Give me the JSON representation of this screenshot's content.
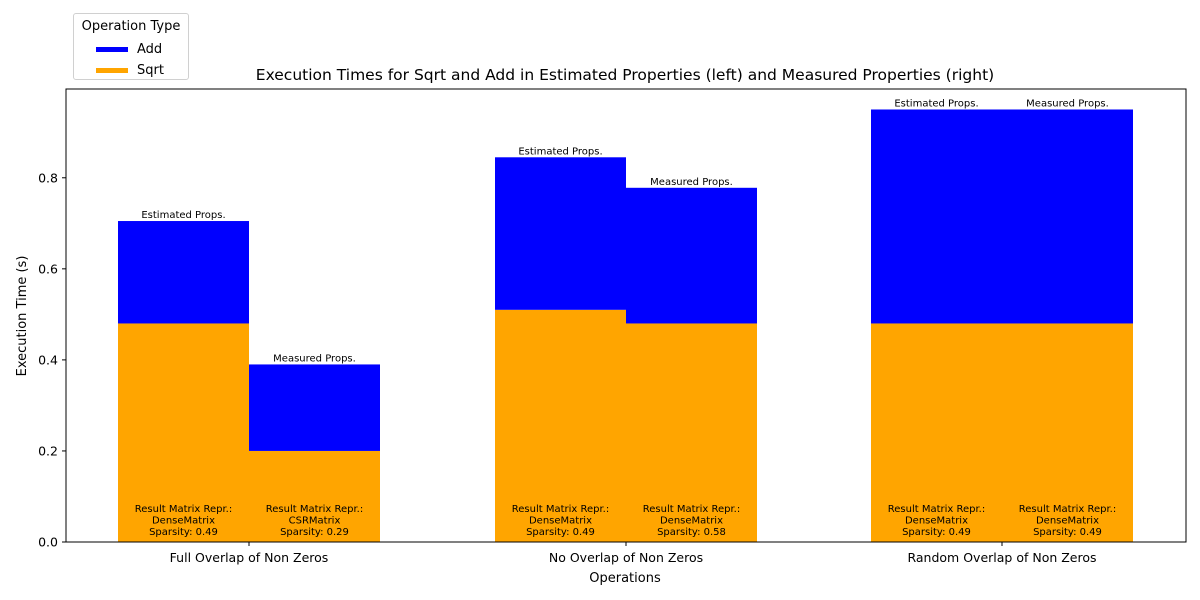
{
  "chart_data": {
    "type": "bar",
    "stacked": true,
    "title": "Execution Times for Sqrt and Add in Estimated Properties (left) and Measured Properties (right)",
    "xlabel": "Operations",
    "ylabel": "Execution Time (s)",
    "ylim": [
      0,
      0.995
    ],
    "yticks": [
      "0.0",
      "0.2",
      "0.4",
      "0.6",
      "0.8"
    ],
    "categories": [
      "Full Overlap of Non Zeros",
      "No Overlap of Non Zeros",
      "Random Overlap of Non Zeros"
    ],
    "legend": {
      "title": "Operation Type",
      "placement": "upper-left-outside"
    },
    "series": [
      {
        "name": "Add",
        "color": "#0000ff"
      },
      {
        "name": "Sqrt",
        "color": "#ffa500"
      }
    ],
    "bars": [
      {
        "category": 0,
        "side": "left",
        "sqrt": 0.48,
        "add": 0.225,
        "top_label": "Estimated Props.",
        "bottom_label": [
          "Result Matrix Repr.:",
          "DenseMatrix",
          "Sparsity: 0.49"
        ]
      },
      {
        "category": 0,
        "side": "right",
        "sqrt": 0.2,
        "add": 0.19,
        "top_label": "Measured Props.",
        "bottom_label": [
          "Result Matrix Repr.:",
          "CSRMatrix",
          "Sparsity: 0.29"
        ]
      },
      {
        "category": 1,
        "side": "left",
        "sqrt": 0.51,
        "add": 0.335,
        "top_label": "Estimated Props.",
        "bottom_label": [
          "Result Matrix Repr.:",
          "DenseMatrix",
          "Sparsity: 0.49"
        ]
      },
      {
        "category": 1,
        "side": "right",
        "sqrt": 0.48,
        "add": 0.298,
        "top_label": "Measured Props.",
        "bottom_label": [
          "Result Matrix Repr.:",
          "DenseMatrix",
          "Sparsity: 0.58"
        ]
      },
      {
        "category": 2,
        "side": "left",
        "sqrt": 0.48,
        "add": 0.47,
        "top_label": "Estimated Props.",
        "bottom_label": [
          "Result Matrix Repr.:",
          "DenseMatrix",
          "Sparsity: 0.49"
        ]
      },
      {
        "category": 2,
        "side": "right",
        "sqrt": 0.48,
        "add": 0.47,
        "top_label": "Measured Props.",
        "bottom_label": [
          "Result Matrix Repr.:",
          "DenseMatrix",
          "Sparsity: 0.49"
        ]
      }
    ]
  }
}
